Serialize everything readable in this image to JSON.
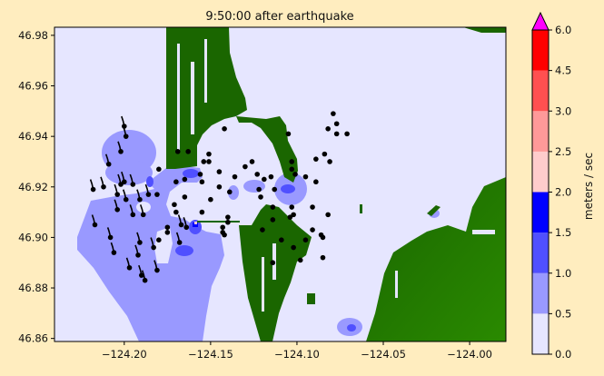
{
  "chart_data": {
    "type": "heatmap",
    "title": "9:50:00 after earthquake",
    "xlabel": "",
    "ylabel": "",
    "xlim": [
      -124.2404,
      -123.979
    ],
    "ylim": [
      46.8588,
      46.9832
    ],
    "xticks": [
      -124.2,
      -124.15,
      -124.1,
      -124.05,
      -124.0
    ],
    "xtick_labels": [
      "−124.20",
      "−124.15",
      "−124.10",
      "−124.05",
      "−124.00"
    ],
    "yticks": [
      46.98,
      46.96,
      46.94,
      46.92,
      46.9,
      46.88,
      46.86
    ],
    "ytick_labels": [
      "46.98",
      "46.96",
      "46.94",
      "46.92",
      "46.90",
      "46.88",
      "46.86"
    ],
    "colors": {
      "background": "#ffedbf",
      "water_still": "#e6e6ff",
      "land": "#1a6600",
      "land_light": "#2a8a00"
    },
    "colorbar": {
      "label": "meters / sec",
      "extend": "max",
      "extend_color": "#ff00ff",
      "bounds": [
        0.0,
        0.5,
        1.0,
        1.5,
        2.0,
        2.5,
        3.0,
        4.5,
        6.0
      ],
      "tick_labels": [
        "0.0",
        "0.5",
        "1.0",
        "1.5",
        "2.0",
        "2.5",
        "3.0",
        "4.5",
        "6.0"
      ],
      "colors": [
        "#e6e6ff",
        "#9999ff",
        "#5050ff",
        "#0000ff",
        "#ffcccc",
        "#ff9999",
        "#ff5050",
        "#ff0000"
      ]
    },
    "drifting_markers": [
      [
        -124.2,
        46.944
      ],
      [
        -124.199,
        46.94
      ],
      [
        -124.202,
        46.934
      ],
      [
        -124.209,
        46.929
      ],
      [
        -124.218,
        46.919
      ],
      [
        -124.212,
        46.92
      ],
      [
        -124.202,
        46.921
      ],
      [
        -124.2,
        46.922
      ],
      [
        -124.195,
        46.921
      ],
      [
        -124.204,
        46.917
      ],
      [
        -124.199,
        46.915
      ],
      [
        -124.204,
        46.911
      ],
      [
        -124.195,
        46.909
      ],
      [
        -124.189,
        46.909
      ],
      [
        -124.191,
        46.915
      ],
      [
        -124.186,
        46.917
      ],
      [
        -124.217,
        46.905
      ],
      [
        -124.208,
        46.9
      ],
      [
        -124.206,
        46.894
      ],
      [
        -124.191,
        46.898
      ],
      [
        -124.183,
        46.896
      ],
      [
        -124.192,
        46.893
      ],
      [
        -124.197,
        46.888
      ],
      [
        -124.19,
        46.885
      ],
      [
        -124.188,
        46.883
      ],
      [
        -124.181,
        46.887
      ],
      [
        -124.168,
        46.898
      ],
      [
        -124.167,
        46.905
      ],
      [
        -124.164,
        46.904
      ]
    ],
    "markers": [
      [
        -124.18,
        46.927
      ],
      [
        -124.181,
        46.917
      ],
      [
        -124.169,
        46.934
      ],
      [
        -124.163,
        46.934
      ],
      [
        -124.154,
        46.93
      ],
      [
        -124.151,
        46.933
      ],
      [
        -124.151,
        46.93
      ],
      [
        -124.156,
        46.925
      ],
      [
        -124.155,
        46.922
      ],
      [
        -124.165,
        46.923
      ],
      [
        -124.17,
        46.922
      ],
      [
        -124.145,
        46.926
      ],
      [
        -124.136,
        46.924
      ],
      [
        -124.13,
        46.928
      ],
      [
        -124.126,
        46.93
      ],
      [
        -124.123,
        46.925
      ],
      [
        -124.119,
        46.923
      ],
      [
        -124.115,
        46.924
      ],
      [
        -124.145,
        46.92
      ],
      [
        -124.139,
        46.918
      ],
      [
        -124.122,
        46.919
      ],
      [
        -124.121,
        46.916
      ],
      [
        -124.113,
        46.919
      ],
      [
        -124.15,
        46.915
      ],
      [
        -124.155,
        46.91
      ],
      [
        -124.165,
        46.916
      ],
      [
        -124.171,
        46.913
      ],
      [
        -124.17,
        46.91
      ],
      [
        -124.14,
        46.908
      ],
      [
        -124.14,
        46.906
      ],
      [
        -124.143,
        46.904
      ],
      [
        -124.143,
        46.902
      ],
      [
        -124.142,
        46.901
      ],
      [
        -124.175,
        46.904
      ],
      [
        -124.175,
        46.902
      ],
      [
        -124.18,
        46.899
      ],
      [
        -124.142,
        46.943
      ],
      [
        -124.105,
        46.941
      ],
      [
        -124.103,
        46.93
      ],
      [
        -124.103,
        46.927
      ],
      [
        -124.101,
        46.925
      ],
      [
        -124.095,
        46.924
      ],
      [
        -124.089,
        46.922
      ],
      [
        -124.089,
        46.931
      ],
      [
        -124.084,
        46.933
      ],
      [
        -124.081,
        46.93
      ],
      [
        -124.082,
        46.943
      ],
      [
        -124.077,
        46.945
      ],
      [
        -124.079,
        46.949
      ],
      [
        -124.077,
        46.941
      ],
      [
        -124.071,
        46.941
      ],
      [
        -124.103,
        46.912
      ],
      [
        -124.102,
        46.909
      ],
      [
        -124.104,
        46.908
      ],
      [
        -124.114,
        46.912
      ],
      [
        -124.114,
        46.907
      ],
      [
        -124.091,
        46.912
      ],
      [
        -124.082,
        46.909
      ],
      [
        -124.12,
        46.903
      ],
      [
        -124.091,
        46.903
      ],
      [
        -124.086,
        46.901
      ],
      [
        -124.085,
        46.9
      ],
      [
        -124.109,
        46.899
      ],
      [
        -124.095,
        46.899
      ],
      [
        -124.102,
        46.896
      ],
      [
        -124.098,
        46.891
      ],
      [
        -124.085,
        46.892
      ],
      [
        -124.114,
        46.89
      ]
    ]
  }
}
